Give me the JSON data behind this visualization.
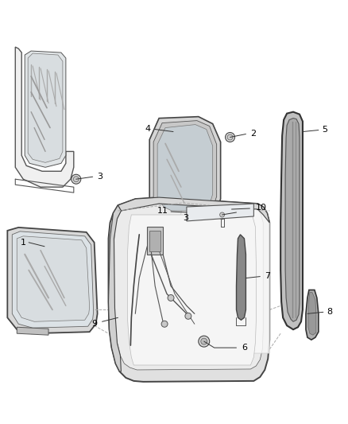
{
  "background_color": "#ffffff",
  "fig_width": 4.38,
  "fig_height": 5.33,
  "dpi": 100,
  "line_color": "#333333",
  "text_color": "#000000",
  "gray_light": "#e8e8e8",
  "gray_med": "#cccccc",
  "gray_dark": "#888888",
  "glass_color": "#d8dde0"
}
